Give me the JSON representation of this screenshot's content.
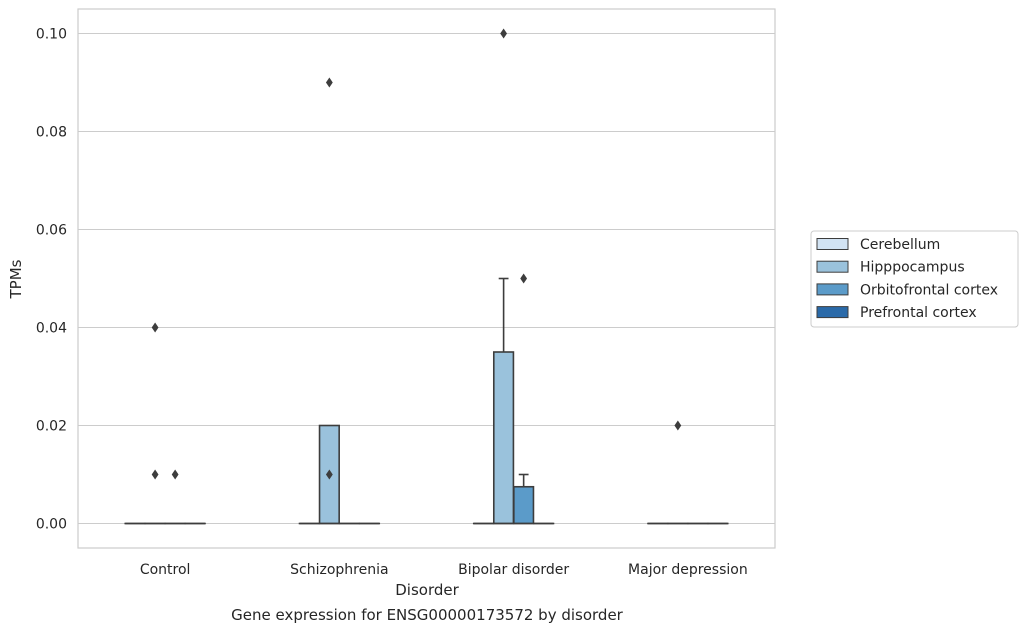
{
  "caption": "Gene expression for ENSG00000173572 by disorder",
  "chart_data": {
    "type": "box",
    "title": "",
    "xlabel": "Disorder",
    "ylabel": "TPMs",
    "categories": [
      "Control",
      "Schizophrenia",
      "Bipolar disorder",
      "Major depression"
    ],
    "ylim": [
      -0.005,
      0.105
    ],
    "yticks": [
      0.0,
      0.02,
      0.04,
      0.06,
      0.08,
      0.1
    ],
    "ytick_labels": [
      "0.00",
      "0.02",
      "0.04",
      "0.06",
      "0.08",
      "0.10"
    ],
    "grid": true,
    "legend_position": "right",
    "series": [
      {
        "name": "Cerebellum",
        "color": "#d2e3f3",
        "boxes": [
          {
            "category": "Control",
            "q1": 0,
            "median": 0,
            "q3": 0,
            "whisker_low": 0,
            "whisker_high": 0,
            "outliers": []
          },
          {
            "category": "Schizophrenia",
            "q1": 0,
            "median": 0,
            "q3": 0,
            "whisker_low": 0,
            "whisker_high": 0,
            "outliers": []
          },
          {
            "category": "Bipolar disorder",
            "q1": 0,
            "median": 0,
            "q3": 0,
            "whisker_low": 0,
            "whisker_high": 0,
            "outliers": []
          },
          {
            "category": "Major depression",
            "q1": 0,
            "median": 0,
            "q3": 0,
            "whisker_low": 0,
            "whisker_high": 0,
            "outliers": []
          }
        ]
      },
      {
        "name": "Hipppocampus",
        "color": "#9ac2dc",
        "boxes": [
          {
            "category": "Control",
            "q1": 0,
            "median": 0,
            "q3": 0,
            "whisker_low": 0,
            "whisker_high": 0,
            "outliers": [
              0.01,
              0.04
            ]
          },
          {
            "category": "Schizophrenia",
            "q1": 0,
            "median": 0,
            "q3": 0.02,
            "whisker_low": 0,
            "whisker_high": 0.02,
            "outliers": [
              0.01,
              0.09
            ]
          },
          {
            "category": "Bipolar disorder",
            "q1": 0,
            "median": 0,
            "q3": 0.035,
            "whisker_low": 0,
            "whisker_high": 0.05,
            "outliers": [
              0.1
            ]
          },
          {
            "category": "Major depression",
            "q1": 0,
            "median": 0,
            "q3": 0,
            "whisker_low": 0,
            "whisker_high": 0,
            "outliers": [
              0.02
            ]
          }
        ]
      },
      {
        "name": "Orbitofrontal cortex",
        "color": "#5b9bc9",
        "boxes": [
          {
            "category": "Control",
            "q1": 0,
            "median": 0,
            "q3": 0,
            "whisker_low": 0,
            "whisker_high": 0,
            "outliers": [
              0.01
            ]
          },
          {
            "category": "Schizophrenia",
            "q1": 0,
            "median": 0,
            "q3": 0,
            "whisker_low": 0,
            "whisker_high": 0,
            "outliers": []
          },
          {
            "category": "Bipolar disorder",
            "q1": 0,
            "median": 0,
            "q3": 0.0075,
            "whisker_low": 0,
            "whisker_high": 0.01,
            "outliers": [
              0.05
            ]
          },
          {
            "category": "Major depression",
            "q1": 0,
            "median": 0,
            "q3": 0,
            "whisker_low": 0,
            "whisker_high": 0,
            "outliers": []
          }
        ]
      },
      {
        "name": "Prefrontal cortex",
        "color": "#2a6aa9",
        "boxes": [
          {
            "category": "Control",
            "q1": 0,
            "median": 0,
            "q3": 0,
            "whisker_low": 0,
            "whisker_high": 0,
            "outliers": []
          },
          {
            "category": "Schizophrenia",
            "q1": 0,
            "median": 0,
            "q3": 0,
            "whisker_low": 0,
            "whisker_high": 0,
            "outliers": []
          },
          {
            "category": "Bipolar disorder",
            "q1": 0,
            "median": 0,
            "q3": 0,
            "whisker_low": 0,
            "whisker_high": 0,
            "outliers": []
          },
          {
            "category": "Major depression",
            "q1": 0,
            "median": 0,
            "q3": 0,
            "whisker_low": 0,
            "whisker_high": 0,
            "outliers": []
          }
        ]
      }
    ]
  }
}
